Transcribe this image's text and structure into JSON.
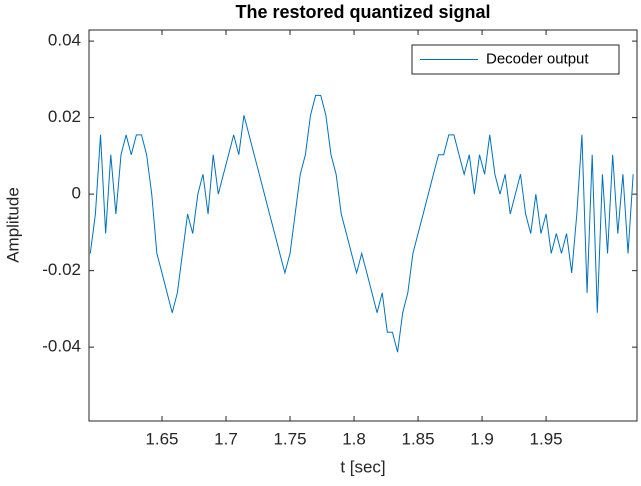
{
  "chart_data": {
    "type": "line",
    "title": "The restored quantized signal",
    "x_label": "t [sec]",
    "y_label": "Amplitude",
    "xlim": [
      1.593,
      2.021
    ],
    "ylim": [
      -0.0593,
      0.0429
    ],
    "xticks": [
      1.65,
      1.7,
      1.75,
      1.8,
      1.85,
      1.9,
      1.95
    ],
    "yticks": [
      -0.04,
      -0.02,
      0,
      0.02,
      0.04
    ],
    "grid": false,
    "legend": "top-right",
    "x": [
      1.594,
      1.598,
      1.602,
      1.606,
      1.61,
      1.614,
      1.618,
      1.622,
      1.626,
      1.63,
      1.634,
      1.638,
      1.642,
      1.646,
      1.65,
      1.654,
      1.658,
      1.662,
      1.666,
      1.67,
      1.674,
      1.678,
      1.682,
      1.686,
      1.69,
      1.694,
      1.698,
      1.702,
      1.706,
      1.71,
      1.714,
      1.718,
      1.722,
      1.726,
      1.73,
      1.734,
      1.738,
      1.742,
      1.746,
      1.75,
      1.754,
      1.758,
      1.762,
      1.766,
      1.77,
      1.774,
      1.778,
      1.782,
      1.786,
      1.79,
      1.794,
      1.798,
      1.802,
      1.806,
      1.81,
      1.814,
      1.818,
      1.822,
      1.826,
      1.83,
      1.834,
      1.838,
      1.842,
      1.846,
      1.85,
      1.854,
      1.858,
      1.862,
      1.866,
      1.87,
      1.874,
      1.878,
      1.882,
      1.886,
      1.89,
      1.894,
      1.898,
      1.902,
      1.906,
      1.91,
      1.914,
      1.918,
      1.922,
      1.926,
      1.93,
      1.934,
      1.938,
      1.942,
      1.946,
      1.95,
      1.954,
      1.958,
      1.962,
      1.966,
      1.97,
      1.974,
      1.978,
      1.982,
      1.986,
      1.99,
      1.994,
      1.998,
      2.002,
      2.006,
      2.01,
      2.014,
      2.018
    ],
    "series": [
      {
        "name": "Decoder output",
        "color": "#0072bd",
        "values": [
          -0.0155,
          -0.0052,
          0.0155,
          -0.0103,
          0.0103,
          -0.0052,
          0.0103,
          0.0155,
          0.0103,
          0.0155,
          0.0155,
          0.0103,
          0.0,
          -0.0155,
          -0.0206,
          -0.0258,
          -0.031,
          -0.0258,
          -0.0155,
          -0.0052,
          -0.0103,
          0.0,
          0.0052,
          -0.0052,
          0.0103,
          0.0,
          0.0052,
          0.0103,
          0.0155,
          0.0103,
          0.0206,
          0.0155,
          0.0103,
          0.0052,
          0.0,
          -0.0052,
          -0.0103,
          -0.0155,
          -0.0206,
          -0.0155,
          -0.0052,
          0.0052,
          0.0103,
          0.0206,
          0.0258,
          0.0258,
          0.0206,
          0.0103,
          0.0052,
          -0.0052,
          -0.0103,
          -0.0155,
          -0.0206,
          -0.0155,
          -0.0206,
          -0.0258,
          -0.031,
          -0.0258,
          -0.0361,
          -0.0361,
          -0.0413,
          -0.031,
          -0.0258,
          -0.0155,
          -0.0103,
          -0.0052,
          0.0,
          0.0052,
          0.0103,
          0.0103,
          0.0155,
          0.0155,
          0.0103,
          0.0052,
          0.0103,
          0.0,
          0.0103,
          0.0052,
          0.0155,
          0.0052,
          0.0,
          0.0052,
          -0.0052,
          0.0,
          0.0052,
          -0.0052,
          -0.0103,
          0.0,
          -0.0103,
          -0.0052,
          -0.0155,
          -0.0103,
          -0.0155,
          -0.0103,
          -0.0206,
          -0.0052,
          0.0155,
          -0.0258,
          0.0103,
          -0.031,
          0.0052,
          -0.0155,
          0.0103,
          -0.0103,
          0.0052,
          -0.0155,
          0.0052
        ]
      }
    ]
  }
}
